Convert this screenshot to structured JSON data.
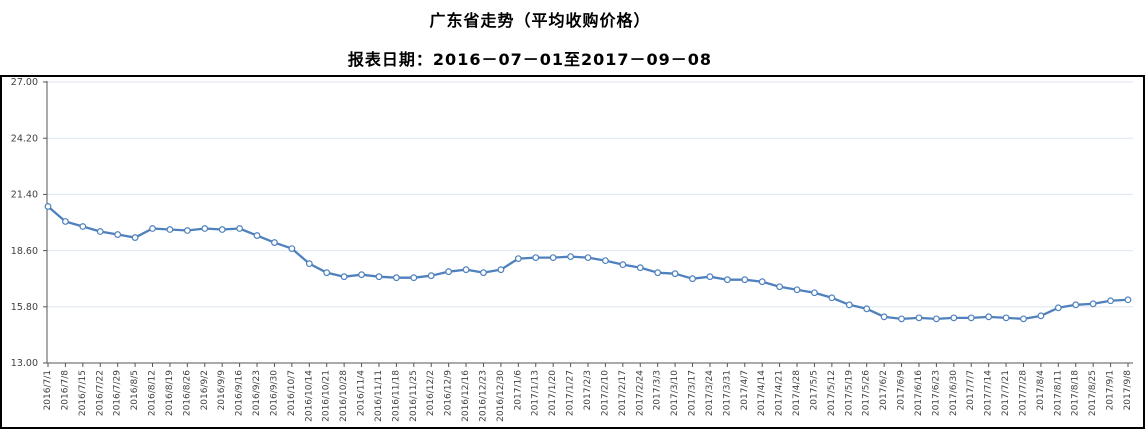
{
  "header": {
    "title": "广东省走势（平均收购价格）",
    "subtitle": "报表日期：2016－07－01至2017－09－08"
  },
  "chart_data": {
    "type": "line",
    "title": "广东省走势（平均收购价格）",
    "subtitle": "报表日期：2016－07－01至2017－09－08",
    "legend": "none",
    "grid": "horizontal",
    "ylim": [
      13.0,
      27.0
    ],
    "yticks": [
      27.0,
      24.2,
      21.4,
      18.6,
      15.8,
      13.0
    ],
    "line_color": "#4f81bd",
    "marker": "circle-hollow",
    "gridline_color": "#dce6f2",
    "axis_color": "#555555",
    "label_color": "#404040",
    "categories": [
      "2016/7/1",
      "2016/7/8",
      "2016/7/15",
      "2016/7/22",
      "2016/7/29",
      "2016/8/5",
      "2016/8/12",
      "2016/8/19",
      "2016/8/26",
      "2016/9/2",
      "2016/9/9",
      "2016/9/16",
      "2016/9/23",
      "2016/9/30",
      "2016/10/7",
      "2016/10/14",
      "2016/10/21",
      "2016/10/28",
      "2016/11/4",
      "2016/11/11",
      "2016/11/18",
      "2016/11/25",
      "2016/12/2",
      "2016/12/9",
      "2016/12/16",
      "2016/12/23",
      "2016/12/30",
      "2017/1/6",
      "2017/1/13",
      "2017/1/20",
      "2017/1/27",
      "2017/2/3",
      "2017/2/10",
      "2017/2/17",
      "2017/2/24",
      "2017/3/3",
      "2017/3/10",
      "2017/3/17",
      "2017/3/24",
      "2017/3/31",
      "2017/4/7",
      "2017/4/14",
      "2017/4/21",
      "2017/4/28",
      "2017/5/5",
      "2017/5/12",
      "2017/5/19",
      "2017/5/26",
      "2017/6/2",
      "2017/6/9",
      "2017/6/16",
      "2017/6/23",
      "2017/6/30",
      "2017/7/7",
      "2017/7/14",
      "2017/7/21",
      "2017/7/28",
      "2017/8/4",
      "2017/8/11",
      "2017/8/18",
      "2017/8/25",
      "2017/9/1",
      "2017/9/8"
    ],
    "series": [
      {
        "name": "平均收购价格",
        "values": [
          20.8,
          20.05,
          19.8,
          19.55,
          19.4,
          19.25,
          19.7,
          19.65,
          19.6,
          19.7,
          19.65,
          19.7,
          19.35,
          19.0,
          18.7,
          17.95,
          17.5,
          17.3,
          17.4,
          17.3,
          17.25,
          17.25,
          17.35,
          17.55,
          17.65,
          17.5,
          17.65,
          18.2,
          18.25,
          18.25,
          18.3,
          18.25,
          18.1,
          17.9,
          17.75,
          17.5,
          17.45,
          17.2,
          17.3,
          17.15,
          17.15,
          17.05,
          16.8,
          16.65,
          16.5,
          16.25,
          15.9,
          15.7,
          15.3,
          15.2,
          15.25,
          15.2,
          15.25,
          15.25,
          15.3,
          15.25,
          15.2,
          15.35,
          15.75,
          15.9,
          15.95,
          16.1,
          16.15
        ]
      }
    ]
  }
}
